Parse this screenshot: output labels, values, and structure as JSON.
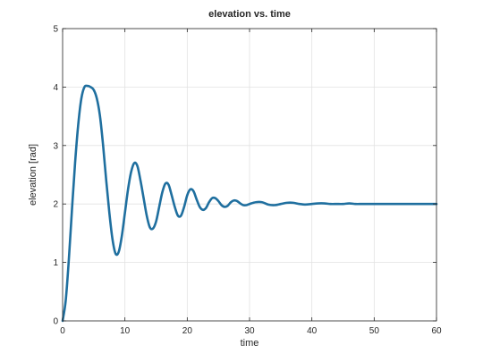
{
  "chart_data": {
    "type": "line",
    "title": "elevation vs. time",
    "xlabel": "time",
    "ylabel": "elevation [rad]",
    "xlim": [
      0,
      60
    ],
    "ylim": [
      0,
      5
    ],
    "xticks": [
      "0",
      "10",
      "20",
      "30",
      "40",
      "50",
      "60"
    ],
    "yticks": [
      "0",
      "1",
      "2",
      "3",
      "4",
      "5"
    ],
    "grid": true,
    "legend": "none",
    "series": [
      {
        "color": "#1f6f9f",
        "x": [
          0,
          0.5,
          1,
          1.5,
          2,
          2.5,
          3,
          3.5,
          4,
          4.5,
          5,
          5.5,
          6,
          6.5,
          7,
          7.5,
          8,
          8.5,
          9,
          9.5,
          10,
          10.5,
          11,
          11.5,
          12,
          12.5,
          13,
          13.5,
          14,
          14.5,
          15,
          15.5,
          16,
          16.5,
          17,
          17.5,
          18,
          18.5,
          19,
          19.5,
          20,
          20.5,
          21,
          21.5,
          22,
          22.5,
          23,
          23.5,
          24,
          24.5,
          25,
          25.5,
          26,
          26.5,
          27,
          27.5,
          28,
          28.5,
          29,
          29.5,
          30,
          31,
          32,
          33,
          34,
          35,
          36,
          37,
          38,
          39,
          40,
          41,
          42,
          43,
          44,
          45,
          46,
          47,
          48,
          49,
          50,
          51,
          52,
          53,
          54,
          55,
          56,
          57,
          58,
          59,
          60
        ],
        "values": [
          0,
          0.35,
          1.05,
          1.9,
          2.7,
          3.35,
          3.8,
          4.0,
          4.02,
          4.0,
          3.95,
          3.8,
          3.5,
          3.0,
          2.4,
          1.85,
          1.4,
          1.15,
          1.18,
          1.45,
          1.85,
          2.25,
          2.55,
          2.7,
          2.65,
          2.4,
          2.1,
          1.8,
          1.6,
          1.58,
          1.7,
          1.95,
          2.2,
          2.35,
          2.33,
          2.15,
          1.95,
          1.8,
          1.8,
          1.95,
          2.15,
          2.25,
          2.22,
          2.08,
          1.95,
          1.9,
          1.93,
          2.03,
          2.1,
          2.1,
          2.05,
          1.98,
          1.95,
          1.97,
          2.03,
          2.06,
          2.05,
          2.01,
          1.98,
          1.98,
          2.0,
          2.03,
          2.03,
          1.99,
          1.98,
          2.0,
          2.02,
          2.02,
          2.0,
          1.99,
          2.0,
          2.01,
          2.01,
          2.0,
          2.0,
          2.0,
          2.01,
          2.0,
          2.0,
          2.0,
          2.0,
          2.0,
          2.0,
          2.0,
          2.0,
          2.0,
          2.0,
          2.0,
          2.0,
          2.0,
          2.0
        ]
      }
    ]
  }
}
